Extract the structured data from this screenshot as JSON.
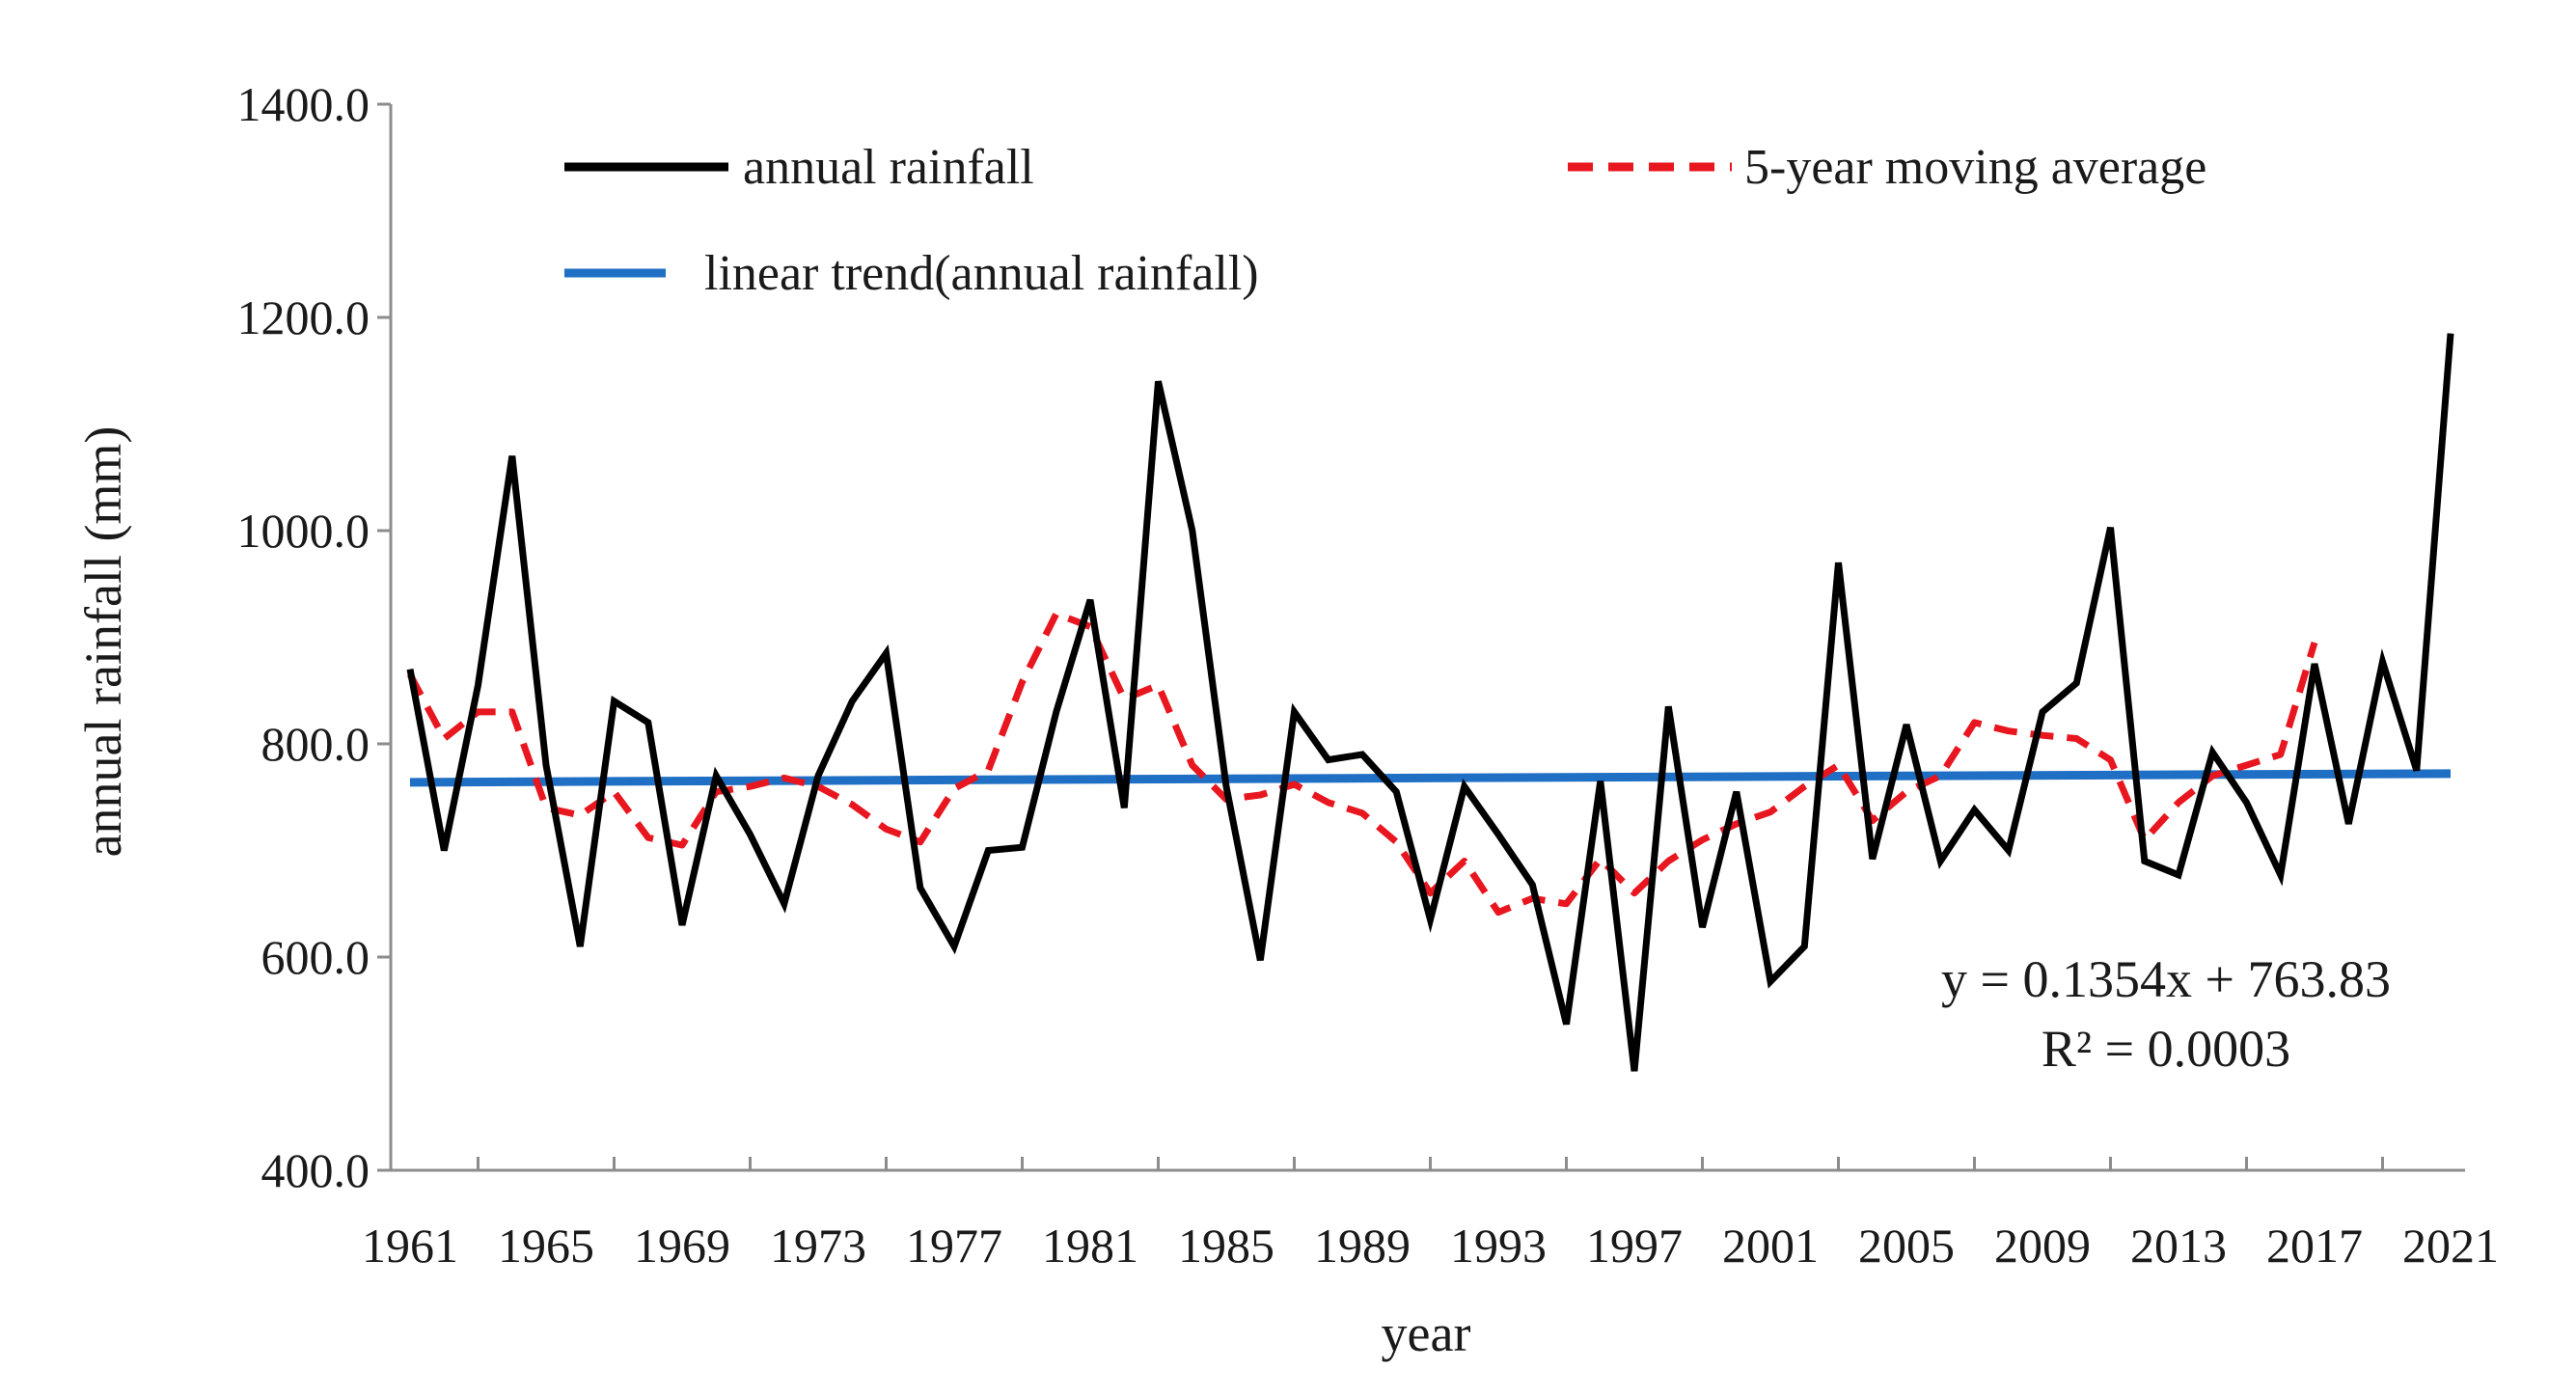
{
  "chart_data": {
    "type": "line",
    "title": "",
    "xlabel": "year",
    "ylabel": "annual rainfall (mm)",
    "ylim": [
      400,
      1400
    ],
    "yticks": [
      "400.0",
      "600.0",
      "800.0",
      "1000.0",
      "1200.0",
      "1400.0"
    ],
    "xlim": [
      1961,
      2021
    ],
    "xticks": [
      "1961",
      "1965",
      "1969",
      "1973",
      "1977",
      "1981",
      "1985",
      "1989",
      "1993",
      "1997",
      "2001",
      "2005",
      "2009",
      "2013",
      "2017",
      "2021"
    ],
    "grid": false,
    "legend_position": "top",
    "x": [
      1961,
      1962,
      1963,
      1964,
      1965,
      1966,
      1967,
      1968,
      1969,
      1970,
      1971,
      1972,
      1973,
      1974,
      1975,
      1976,
      1977,
      1978,
      1979,
      1980,
      1981,
      1982,
      1983,
      1984,
      1985,
      1986,
      1987,
      1988,
      1989,
      1990,
      1991,
      1992,
      1993,
      1994,
      1995,
      1996,
      1997,
      1998,
      1999,
      2000,
      2001,
      2002,
      2003,
      2004,
      2005,
      2006,
      2007,
      2008,
      2009,
      2010,
      2011,
      2012,
      2013,
      2014,
      2015,
      2016,
      2017,
      2018,
      2019,
      2020,
      2021
    ],
    "series": [
      {
        "name": "annual rainfall",
        "color": "#000000",
        "style": "solid",
        "values": [
          870,
          700,
          855,
          1070,
          780,
          610,
          840,
          820,
          630,
          770,
          715,
          650,
          770,
          840,
          885,
          665,
          610,
          700,
          703,
          830,
          935,
          740,
          1140,
          1000,
          760,
          597,
          830,
          785,
          790,
          755,
          635,
          760,
          715,
          668,
          537,
          765,
          493,
          835,
          628,
          755,
          577,
          610,
          970,
          692,
          818,
          690,
          738,
          700,
          830,
          857,
          1003,
          690,
          677,
          792,
          745,
          677,
          875,
          725,
          877,
          775,
          1185
        ]
      },
      {
        "name": "5-year moving average",
        "color": "#e8161f",
        "style": "dashed",
        "values": [
          865,
          805,
          830,
          830,
          740,
          733,
          755,
          712,
          705,
          755,
          760,
          768,
          760,
          743,
          720,
          708,
          758,
          775,
          858,
          922,
          910,
          842,
          855,
          780,
          748,
          752,
          762,
          745,
          735,
          708,
          660,
          690,
          642,
          655,
          650,
          692,
          660,
          690,
          710,
          725,
          736,
          760,
          780,
          728,
          755,
          770,
          820,
          812,
          808,
          805,
          785,
          710,
          745,
          770,
          780,
          790,
          895,
          null,
          null,
          null,
          null
        ]
      },
      {
        "name": "linear trend(annual rainfall)",
        "color": "#1f6fc4",
        "style": "solid",
        "slope": 0.1354,
        "intercept": 763.83
      }
    ],
    "annotations": {
      "equation": "y = 0.1354x + 763.83",
      "r_squared": "R² = 0.0003"
    }
  }
}
